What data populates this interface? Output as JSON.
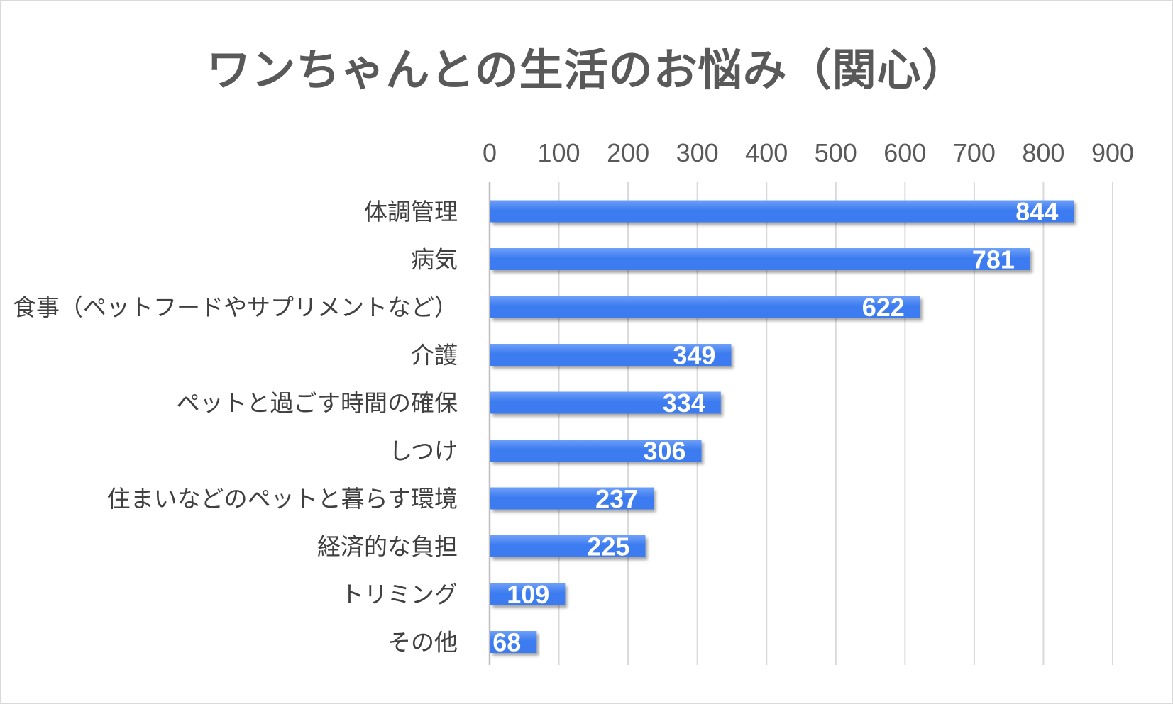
{
  "chart_data": {
    "type": "bar",
    "orientation": "horizontal",
    "title": "ワンちゃんとの生活のお悩み（関心）",
    "categories": [
      "体調管理",
      "病気",
      "食事（ペットフードやサプリメントなど）",
      "介護",
      "ペットと過ごす時間の確保",
      "しつけ",
      "住まいなどのペットと暮らす環境",
      "経済的な負担",
      "トリミング",
      "その他"
    ],
    "values": [
      844,
      781,
      622,
      349,
      334,
      306,
      237,
      225,
      109,
      68
    ],
    "xlim": [
      0,
      900
    ],
    "xticks": [
      0,
      100,
      200,
      300,
      400,
      500,
      600,
      700,
      800,
      900
    ],
    "axis_position": "top",
    "grid": true,
    "data_labels": true,
    "bar_color": "#3d7cf0",
    "bar_color_light": "#6fa0f8"
  }
}
